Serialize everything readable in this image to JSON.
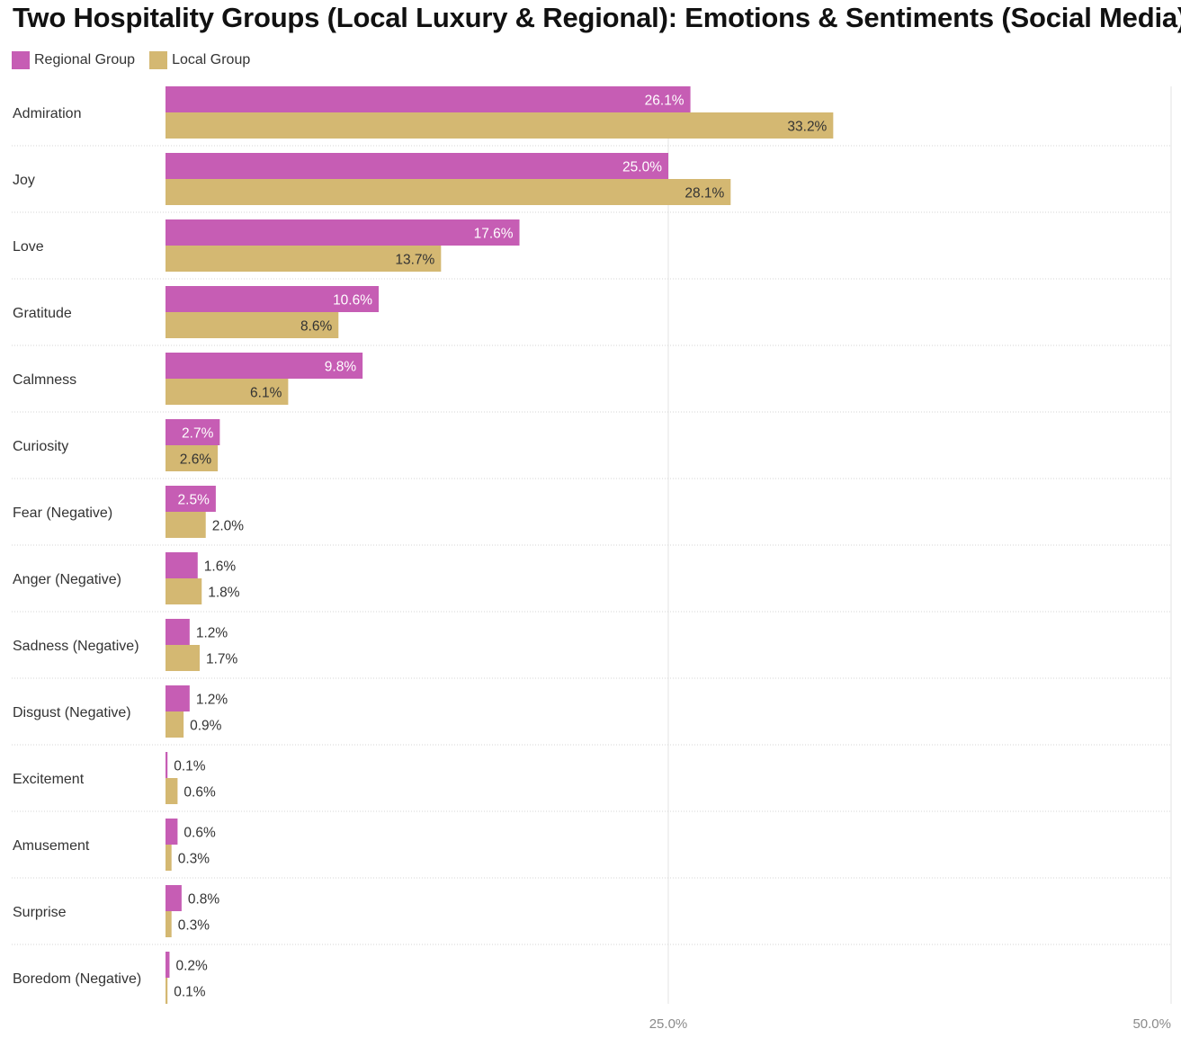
{
  "chart_data": {
    "type": "bar",
    "orientation": "horizontal",
    "title": "Two Hospitality Groups (Local Luxury & Regional): Emotions & Sentiments (Social Media)",
    "categories": [
      "Admiration",
      "Joy",
      "Love",
      "Gratitude",
      "Calmness",
      "Curiosity",
      "Fear (Negative)",
      "Anger (Negative)",
      "Sadness (Negative)",
      "Disgust (Negative)",
      "Excitement",
      "Amusement",
      "Surprise",
      "Boredom (Negative)"
    ],
    "series": [
      {
        "name": "Regional Group",
        "color": "#c65db4",
        "values": [
          26.1,
          25.0,
          17.6,
          10.6,
          9.8,
          2.7,
          2.5,
          1.6,
          1.2,
          1.2,
          0.1,
          0.6,
          0.8,
          0.2
        ]
      },
      {
        "name": "Local Group",
        "color": "#d4b872",
        "values": [
          33.2,
          28.1,
          13.7,
          8.6,
          6.1,
          2.6,
          2.0,
          1.8,
          1.7,
          0.9,
          0.6,
          0.3,
          0.3,
          0.1
        ]
      }
    ],
    "xlim": [
      0,
      50
    ],
    "xticks": [
      "25.0%",
      "50.0%"
    ],
    "tick_values": [
      25,
      50
    ],
    "value_suffix": "%",
    "grid": true,
    "legend_position": "top-left"
  }
}
